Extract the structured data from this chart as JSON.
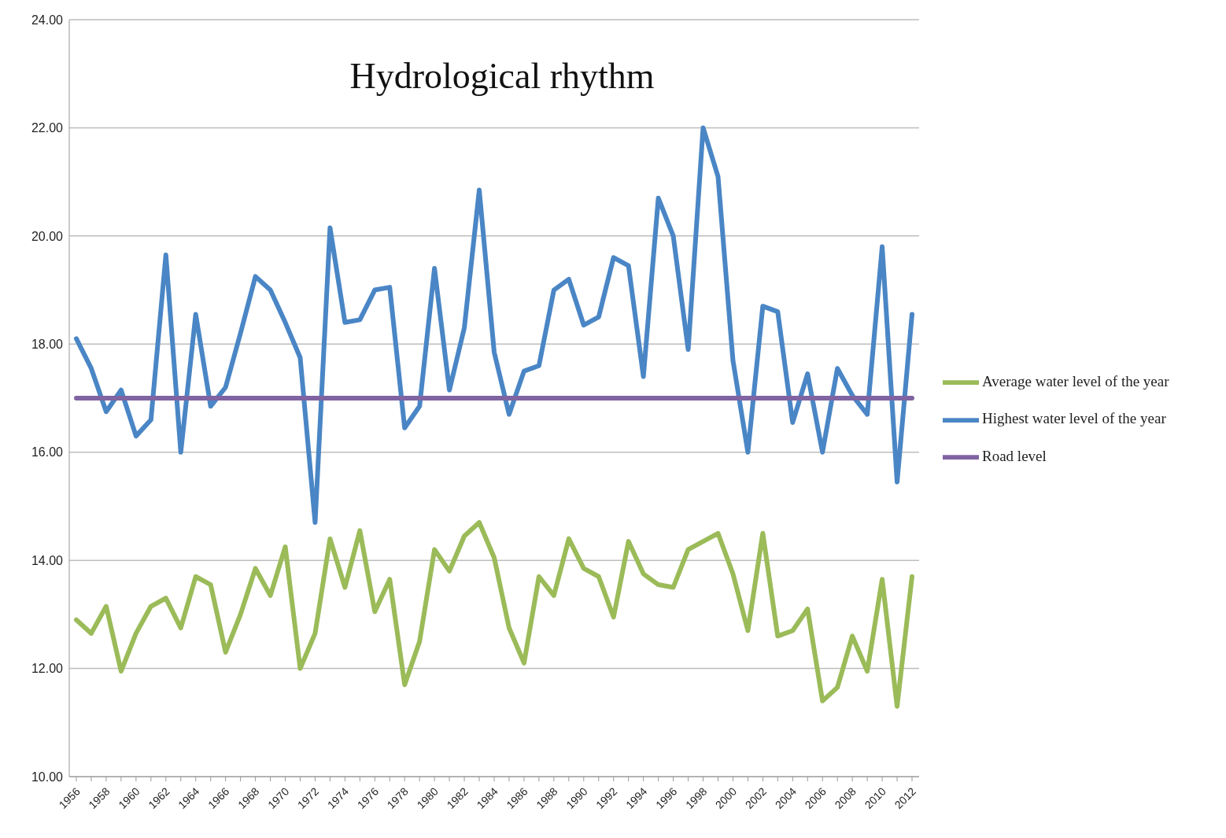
{
  "chart_data": {
    "type": "line",
    "title": "Hydrological rhythm",
    "categories": [
      "1956",
      null,
      "1958",
      null,
      "1960",
      null,
      "1962",
      null,
      "1964",
      null,
      "1966",
      null,
      "1968",
      null,
      "1970",
      null,
      "1972",
      null,
      "1974",
      null,
      "1976",
      null,
      "1978",
      null,
      "1980",
      null,
      "1982",
      null,
      "1984",
      null,
      "1986",
      null,
      "1988",
      null,
      "1990",
      null,
      "1992",
      null,
      "1994",
      null,
      "1996",
      null,
      "1998",
      null,
      "2000",
      null,
      "2002",
      null,
      "2004",
      null,
      "2006",
      null,
      "2008",
      null,
      "2010",
      null,
      "2012"
    ],
    "series": [
      {
        "name": "Highest water level of the year",
        "color": "#4a86c5",
        "values": [
          18.1,
          17.55,
          16.75,
          17.15,
          16.3,
          16.6,
          19.65,
          16.0,
          18.55,
          16.85,
          17.2,
          18.2,
          19.25,
          19.0,
          18.4,
          17.75,
          14.7,
          20.15,
          18.4,
          18.45,
          19.0,
          19.05,
          16.45,
          16.85,
          19.4,
          17.15,
          18.3,
          20.85,
          17.85,
          16.7,
          17.5,
          17.6,
          19.0,
          19.2,
          18.35,
          18.5,
          19.6,
          19.45,
          17.4,
          20.7,
          20.0,
          17.9,
          22.0,
          21.1,
          17.7,
          16.0,
          18.7,
          18.6,
          16.55,
          17.45,
          16.0,
          17.55,
          17.05,
          16.7,
          19.8,
          15.45,
          18.55
        ]
      },
      {
        "name": "Average water level of the year",
        "color": "#9bbb59",
        "values": [
          12.9,
          12.65,
          13.15,
          11.95,
          12.65,
          13.15,
          13.3,
          12.75,
          13.7,
          13.55,
          12.3,
          13.0,
          13.85,
          13.35,
          14.25,
          12.0,
          12.65,
          14.4,
          13.5,
          14.55,
          13.05,
          13.65,
          11.7,
          12.5,
          14.2,
          13.8,
          14.45,
          14.7,
          14.05,
          12.75,
          12.1,
          13.7,
          13.35,
          14.4,
          13.85,
          13.7,
          12.95,
          14.35,
          13.75,
          13.55,
          13.5,
          14.2,
          14.35,
          14.5,
          13.75,
          12.7,
          14.5,
          12.6,
          12.7,
          13.1,
          11.4,
          11.65,
          12.6,
          11.95,
          13.65,
          11.3,
          13.7
        ]
      },
      {
        "name": "Road level",
        "color": "#8064a2",
        "values": [
          17,
          17,
          17,
          17,
          17,
          17,
          17,
          17,
          17,
          17,
          17,
          17,
          17,
          17,
          17,
          17,
          17,
          17,
          17,
          17,
          17,
          17,
          17,
          17,
          17,
          17,
          17,
          17,
          17,
          17,
          17,
          17,
          17,
          17,
          17,
          17,
          17,
          17,
          17,
          17,
          17,
          17,
          17,
          17,
          17,
          17,
          17,
          17,
          17,
          17,
          17,
          17,
          17,
          17,
          17,
          17,
          17
        ]
      }
    ],
    "ylim": [
      10,
      24
    ],
    "yticks": [
      {
        "value": 10,
        "label": "10.00"
      },
      {
        "value": 12,
        "label": "12.00"
      },
      {
        "value": 14,
        "label": "14.00"
      },
      {
        "value": 16,
        "label": "16.00"
      },
      {
        "value": 18,
        "label": "18.00"
      },
      {
        "value": 20,
        "label": "20.00"
      },
      {
        "value": 22,
        "label": "22.00"
      },
      {
        "value": 24,
        "label": "24.00"
      }
    ],
    "grid": "y",
    "legend": "right",
    "marker": "none",
    "line_style": "solid"
  }
}
